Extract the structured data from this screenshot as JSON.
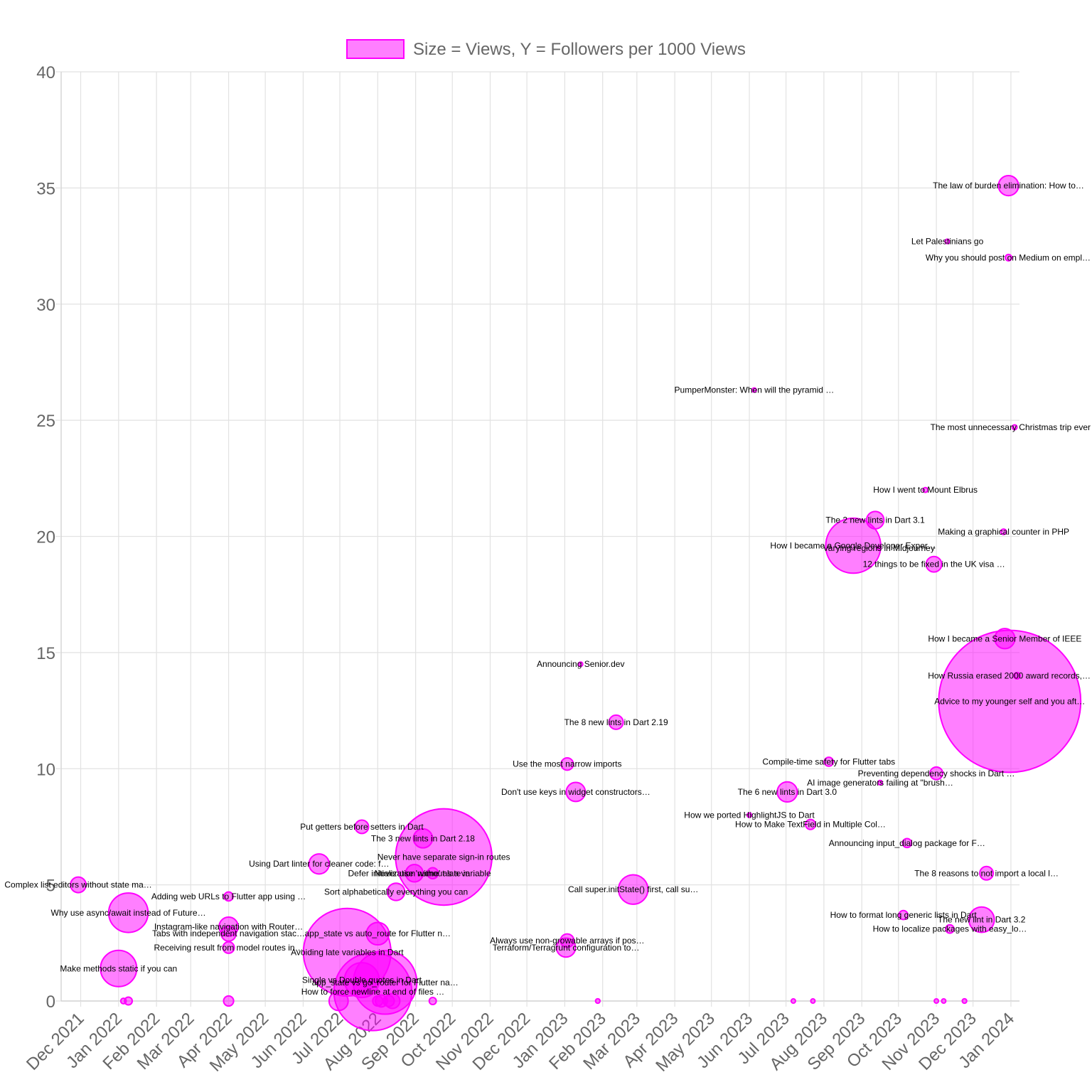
{
  "chart_data": {
    "type": "bubble",
    "legend": {
      "label": "Size = Views, Y = Followers per 1000 Views",
      "position": "top",
      "color": "#ff00ff"
    },
    "x_axis": {
      "type": "time",
      "min": "2021-11-15",
      "max": "2024-01-08",
      "tick_labels": [
        "Dec 2021",
        "Jan 2022",
        "Feb 2022",
        "Mar 2022",
        "Apr 2022",
        "May 2022",
        "Jun 2022",
        "Jul 2022",
        "Aug 2022",
        "Sep 2022",
        "Oct 2022",
        "Nov 2022",
        "Dec 2022",
        "Jan 2023",
        "Feb 2023",
        "Mar 2023",
        "Apr 2023",
        "May 2023",
        "Jun 2023",
        "Jul 2023",
        "Aug 2023",
        "Sep 2023",
        "Oct 2023",
        "Nov 2023",
        "Dec 2023",
        "Jan 2024"
      ]
    },
    "y_axis": {
      "min": 0,
      "max": 40,
      "step": 5,
      "tick_labels": [
        "0",
        "5",
        "10",
        "15",
        "20",
        "25",
        "30",
        "35",
        "40"
      ]
    },
    "size_metric": "views",
    "points": [
      {
        "label": "Complex list editors without state ma…",
        "date": "2021-11-29",
        "y": 5.0,
        "views": 1200
      },
      {
        "label": "Make methods static if you can",
        "date": "2022-01-01",
        "y": 1.4,
        "views": 6500
      },
      {
        "label": "",
        "date": "2022-01-05",
        "y": 0,
        "views": 150
      },
      {
        "label": "",
        "date": "2022-01-09",
        "y": 0,
        "views": 300
      },
      {
        "label": "Why use async/await instead of Future…",
        "date": "2022-01-09",
        "y": 3.8,
        "views": 7700
      },
      {
        "label": "Adding web URLs to Flutter app using …",
        "date": "2022-04-01",
        "y": 4.5,
        "views": 400
      },
      {
        "label": "Instagram-like navigation with Router…",
        "date": "2022-04-01",
        "y": 3.2,
        "views": 1800
      },
      {
        "label": "Tabs with independent navigation stac…",
        "date": "2022-04-01",
        "y": 2.9,
        "views": 1100
      },
      {
        "label": "Receiving result from model routes in…",
        "date": "2022-04-01",
        "y": 2.3,
        "views": 650
      },
      {
        "label": "",
        "date": "2022-04-01",
        "y": 0,
        "views": 500
      },
      {
        "label": "Using Dart linter for cleaner code: f…",
        "date": "2022-06-14",
        "y": 5.9,
        "views": 2000
      },
      {
        "label": "",
        "date": "2022-06-30",
        "y": 0,
        "views": 1800
      },
      {
        "label": "Avoiding late variables in Dart",
        "date": "2022-07-07",
        "y": 2.1,
        "views": 38000
      },
      {
        "label": "Single vs Double quotes in Dart",
        "date": "2022-07-19",
        "y": 0.9,
        "views": 6000
      },
      {
        "label": "How to force newline at end of files …",
        "date": "2022-07-28",
        "y": 0.4,
        "views": 30000
      },
      {
        "label": "Put getters before setters in Dart",
        "date": "2022-07-19",
        "y": 7.5,
        "views": 900
      },
      {
        "label": "app_state vs auto_route for Flutter n…",
        "date": "2022-08-01",
        "y": 2.9,
        "views": 2500
      },
      {
        "label": "app_state vs go_router for Flutter na…",
        "date": "2022-08-07",
        "y": 0.8,
        "views": 20000
      },
      {
        "label": "",
        "date": "2022-08-01",
        "y": 0,
        "views": 500
      },
      {
        "label": "",
        "date": "2022-08-04",
        "y": 0,
        "views": 700
      },
      {
        "label": "",
        "date": "2022-08-10",
        "y": 0,
        "views": 600
      },
      {
        "label": "",
        "date": "2022-08-13",
        "y": 0,
        "views": 1100
      },
      {
        "label": "Sort alphabetically everything you can",
        "date": "2022-08-16",
        "y": 4.7,
        "views": 1500
      },
      {
        "label": "Defer initialization without late in …",
        "date": "2022-08-31",
        "y": 5.5,
        "views": 1500
      },
      {
        "label": "The 3 new lints in Dart 2.18",
        "date": "2022-09-07",
        "y": 7.0,
        "views": 1800
      },
      {
        "label": "Never use 'name' as a variable",
        "date": "2022-09-15",
        "y": 5.5,
        "views": 600
      },
      {
        "label": "Never have separate sign-in routes",
        "date": "2022-09-24",
        "y": 6.2,
        "views": 46000
      },
      {
        "label": "",
        "date": "2022-09-15",
        "y": 0,
        "views": 250
      },
      {
        "label": "Use the most narrow imports",
        "date": "2023-01-03",
        "y": 10.2,
        "views": 750
      },
      {
        "label": "Don't use keys in widget constructors…",
        "date": "2023-01-10",
        "y": 9.0,
        "views": 1800
      },
      {
        "label": "Always use non-growable arrays if pos…",
        "date": "2023-01-03",
        "y": 2.6,
        "views": 900
      },
      {
        "label": "Terraform/Terragrunt configuration to…",
        "date": "2023-01-02",
        "y": 2.3,
        "views": 1800
      },
      {
        "label": "Announcing Senior.dev",
        "date": "2023-01-14",
        "y": 14.5,
        "views": 80
      },
      {
        "label": "",
        "date": "2023-01-28",
        "y": 0,
        "views": 100
      },
      {
        "label": "The 8 new lints in Dart 2.19",
        "date": "2023-02-12",
        "y": 12.0,
        "views": 1000
      },
      {
        "label": "Call super.initState() first, call su…",
        "date": "2023-02-26",
        "y": 4.8,
        "views": 4300
      },
      {
        "label": "PumperMonster: When will the pyramid …",
        "date": "2023-06-05",
        "y": 26.3,
        "views": 30
      },
      {
        "label": "How we ported HighlightJS to Dart",
        "date": "2023-06-01",
        "y": 8.0,
        "views": 100
      },
      {
        "label": "The 6 new lints in Dart 3.0",
        "date": "2023-07-02",
        "y": 9.0,
        "views": 2000
      },
      {
        "label": "",
        "date": "2023-07-07",
        "y": 0,
        "views": 40
      },
      {
        "label": "How to Make TextField in Multiple Col…",
        "date": "2023-07-21",
        "y": 7.6,
        "views": 500
      },
      {
        "label": "",
        "date": "2023-07-23",
        "y": 0,
        "views": 40
      },
      {
        "label": "Compile-time safety for Flutter tabs",
        "date": "2023-08-05",
        "y": 10.3,
        "views": 400
      },
      {
        "label": "How I became a Google Developer Exper…",
        "date": "2023-08-25",
        "y": 19.6,
        "views": 15000
      },
      {
        "label": "The 2 new lints in Dart 3.1",
        "date": "2023-09-12",
        "y": 20.7,
        "views": 1500
      },
      {
        "label": "Varying regions in Midjourney",
        "date": "2023-09-15",
        "y": 19.5,
        "views": 50
      },
      {
        "label": "AI image generators failing at \"brush…",
        "date": "2023-09-16",
        "y": 9.4,
        "views": 100
      },
      {
        "label": "How to format long generic lists in Dart",
        "date": "2023-10-05",
        "y": 3.7,
        "views": 400
      },
      {
        "label": "Announcing input_dialog package for F…",
        "date": "2023-10-08",
        "y": 6.8,
        "views": 400
      },
      {
        "label": "How I went to Mount Elbrus",
        "date": "2023-10-23",
        "y": 22.0,
        "views": 120
      },
      {
        "label": "12 things to be fixed in the UK visa …",
        "date": "2023-10-30",
        "y": 18.8,
        "views": 1200
      },
      {
        "label": "Preventing dependency shocks in Dart …",
        "date": "2023-11-01",
        "y": 9.8,
        "views": 800
      },
      {
        "label": "Let Palestinians go",
        "date": "2023-11-10",
        "y": 32.7,
        "views": 100
      },
      {
        "label": "",
        "date": "2023-11-01",
        "y": 0,
        "views": 50
      },
      {
        "label": "",
        "date": "2023-11-07",
        "y": 0,
        "views": 90
      },
      {
        "label": "How to localize packages with easy_lo…",
        "date": "2023-11-12",
        "y": 3.1,
        "views": 350
      },
      {
        "label": "",
        "date": "2023-11-24",
        "y": 0,
        "views": 100
      },
      {
        "label": "The new lint in Dart 3.2",
        "date": "2023-12-08",
        "y": 3.5,
        "views": 3200
      },
      {
        "label": "The 8 reasons to not import a local l…",
        "date": "2023-12-12",
        "y": 5.5,
        "views": 900
      },
      {
        "label": "Making a graphical counter in PHP",
        "date": "2023-12-26",
        "y": 20.2,
        "views": 150
      },
      {
        "label": "How I became a Senior Member of IEEE",
        "date": "2023-12-27",
        "y": 15.6,
        "views": 2000
      },
      {
        "label": "Advice to my younger self and you aft…",
        "date": "2023-12-31",
        "y": 12.9,
        "views": 100000
      },
      {
        "label": "The law of burden elimination: How to…",
        "date": "2023-12-30",
        "y": 35.1,
        "views": 2000
      },
      {
        "label": "Why you should post on Medium on empl…",
        "date": "2023-12-30",
        "y": 32.0,
        "views": 200
      },
      {
        "label": "The most unnecessary Christmas trip ever",
        "date": "2024-01-04",
        "y": 24.7,
        "views": 120
      },
      {
        "label": "How Russia erased 2000 award records,…",
        "date": "2024-01-06",
        "y": 14.0,
        "views": 200
      }
    ]
  }
}
